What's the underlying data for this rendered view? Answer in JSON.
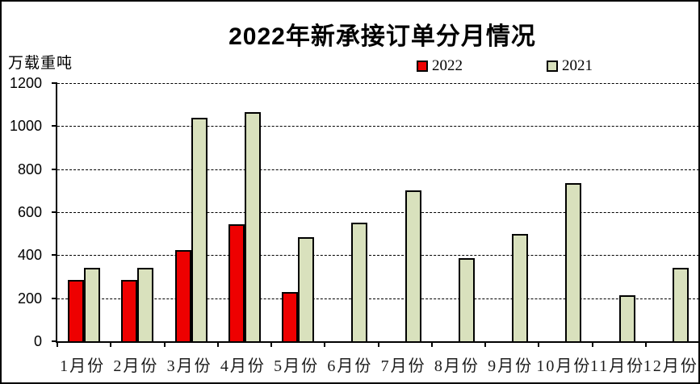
{
  "title": "2022年新承接订单分月情况",
  "y_axis_unit": "万载重吨",
  "legend": {
    "items": [
      {
        "label": "2022",
        "color": "#ee0000"
      },
      {
        "label": "2021",
        "color": "#d9e1bd"
      }
    ]
  },
  "chart_data": {
    "type": "bar",
    "title": "2022年新承接订单分月情况",
    "ylabel": "万载重吨",
    "xlabel": "",
    "categories": [
      "1月份",
      "2月份",
      "3月份",
      "4月份",
      "5月份",
      "6月份",
      "7月份",
      "8月份",
      "9月份",
      "10月份",
      "11月份",
      "12月份"
    ],
    "series": [
      {
        "name": "2022",
        "color": "#ee0000",
        "values": [
          285,
          285,
          425,
          545,
          230,
          0,
          0,
          0,
          0,
          0,
          0,
          0
        ]
      },
      {
        "name": "2021",
        "color": "#d9e1bd",
        "values": [
          340,
          340,
          1040,
          1065,
          485,
          550,
          700,
          385,
          500,
          735,
          215,
          340
        ]
      }
    ],
    "ylim": [
      0,
      1200
    ],
    "ytick_interval": 200,
    "ytick_labels": [
      "0",
      "200",
      "400",
      "600",
      "800",
      "1000",
      "1200"
    ],
    "grid": "horizontal-dashed",
    "legend_position": "top-center",
    "bar_border_color": "#000000"
  }
}
